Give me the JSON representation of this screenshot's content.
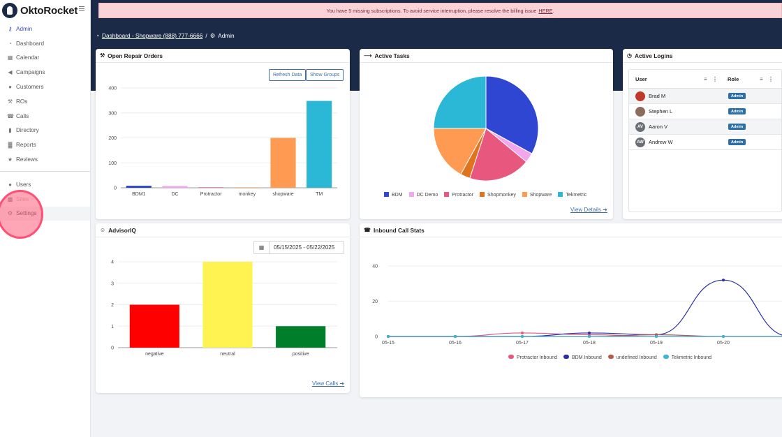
{
  "app": {
    "logo_text": "OktoRocket"
  },
  "alert": {
    "text": "You have 5 missing subscriptions. To avoid service interruption, please resolve the billing issue",
    "link": "HERE",
    "suffix": "."
  },
  "breadcrumb": {
    "dashboard": "Dashboard - Shopware (888) 777-6666",
    "sep": "/",
    "current": "Admin"
  },
  "sidebar": {
    "items": [
      {
        "label": "Admin",
        "icon": "key-icon",
        "glyph": "⚷"
      },
      {
        "label": "Dashboard",
        "icon": "dashboard-icon",
        "glyph": "◔"
      },
      {
        "label": "Calendar",
        "icon": "calendar-icon",
        "glyph": "▦"
      },
      {
        "label": "Campaigns",
        "icon": "megaphone-icon",
        "glyph": "◀"
      },
      {
        "label": "Customers",
        "icon": "users-icon",
        "glyph": "●"
      },
      {
        "label": "ROs",
        "icon": "wrench-icon",
        "glyph": "⚒"
      },
      {
        "label": "Calls",
        "icon": "phone-icon",
        "glyph": "☎"
      },
      {
        "label": "Directory",
        "icon": "book-icon",
        "glyph": "▮"
      },
      {
        "label": "Reports",
        "icon": "chart-icon",
        "glyph": "▓"
      },
      {
        "label": "Reviews",
        "icon": "star-icon",
        "glyph": "★"
      }
    ],
    "items2": [
      {
        "label": "Users",
        "icon": "users-icon",
        "glyph": "●"
      },
      {
        "label": "Sites",
        "icon": "building-icon",
        "glyph": "▩"
      },
      {
        "label": "Settings",
        "icon": "gear-icon",
        "glyph": "⚙"
      }
    ]
  },
  "repair_orders": {
    "title": "Open Repair Orders",
    "refresh_label": "Refresh Data",
    "groups_label": "Show Groups"
  },
  "active_tasks": {
    "title": "Active Tasks",
    "view_details": "View Details"
  },
  "active_logins": {
    "title": "Active Logins",
    "col_user": "User",
    "col_role": "Role",
    "rows": [
      {
        "initials": "",
        "name": "Brad M",
        "role": "Admin"
      },
      {
        "initials": "",
        "name": "Stephen L",
        "role": "Admin"
      },
      {
        "initials": "AV",
        "name": "Aaron V",
        "role": "Admin"
      },
      {
        "initials": "AW",
        "name": "Andrew W",
        "role": "Admin"
      }
    ]
  },
  "advisor_iq": {
    "title": "AdvisorIQ",
    "date_range": "05/15/2025 - 05/22/2025",
    "view_calls": "View Calls"
  },
  "call_stats": {
    "title": "Inbound Call Stats"
  },
  "colors": {
    "navy": "#1a2a47",
    "accent": "#3f51b5",
    "link": "#3d6fa8"
  },
  "chart_data": [
    {
      "id": "repair-orders",
      "type": "bar",
      "categories": [
        "BDM1",
        "DC",
        "Protractor",
        "monkey",
        "shopware",
        "TM"
      ],
      "values": [
        8,
        7,
        2,
        1,
        200,
        348
      ],
      "colors": [
        "#2b45c9",
        "#f2a6ee",
        "#e8587e",
        "#e0731e",
        "#ff9a52",
        "#2bb7d6"
      ],
      "ylim": [
        0,
        400
      ],
      "yticks": [
        0,
        100,
        200,
        300,
        400
      ]
    },
    {
      "id": "active-tasks",
      "type": "pie",
      "labels": [
        "BDM",
        "DC Demo",
        "Protractor",
        "Shopmonkey",
        "Shopware",
        "Tekmetric"
      ],
      "values": [
        33,
        3,
        19,
        3,
        17,
        25
      ],
      "colors": [
        "#2e46d1",
        "#f2a6ee",
        "#e8587e",
        "#e0731e",
        "#ff9a52",
        "#2bb7d6"
      ]
    },
    {
      "id": "advisor-iq",
      "type": "bar",
      "categories": [
        "negative",
        "neutral",
        "positive"
      ],
      "values": [
        2,
        4,
        1
      ],
      "colors": [
        "#ff0000",
        "#fff352",
        "#007e2a"
      ],
      "ylim": [
        0,
        4
      ],
      "yticks": [
        0,
        1,
        2,
        3,
        4
      ]
    },
    {
      "id": "inbound-calls",
      "type": "line",
      "x": [
        "05-15",
        "05-16",
        "05-17",
        "05-18",
        "05-19",
        "05-20"
      ],
      "yticks": [
        0,
        20,
        40
      ],
      "ylim": [
        0,
        40
      ],
      "series": [
        {
          "name": "Protractor Inbound",
          "color": "#e8587e",
          "values": [
            0,
            0,
            2,
            1,
            0,
            0
          ]
        },
        {
          "name": "BDM Inbound",
          "color": "#2b2ea8",
          "values": [
            0,
            0,
            0,
            2,
            1,
            32
          ]
        },
        {
          "name": "undefined Inbound",
          "color": "#b55a4a",
          "values": [
            0,
            0,
            0,
            0,
            1,
            0
          ]
        },
        {
          "name": "Tekmetric Inbound",
          "color": "#3bb5d8",
          "values": [
            0,
            0,
            0,
            0,
            0,
            0
          ]
        }
      ]
    }
  ]
}
